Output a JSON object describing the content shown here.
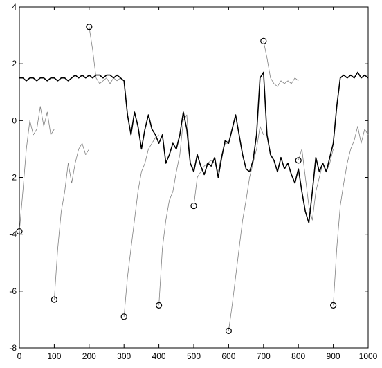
{
  "chart_data": {
    "type": "line",
    "xlim": [
      0,
      1000
    ],
    "ylim": [
      -8,
      4
    ],
    "xticks": [
      0,
      100,
      200,
      300,
      400,
      500,
      600,
      700,
      800,
      900,
      1000
    ],
    "yticks": [
      -8,
      -6,
      -4,
      -2,
      0,
      2,
      4
    ],
    "series": [
      {
        "color": "#000000",
        "width": 1.6,
        "x": [
          0,
          10,
          20,
          30,
          40,
          50,
          60,
          70,
          80,
          90,
          100,
          110,
          120,
          130,
          140,
          150,
          160,
          170,
          180,
          190,
          200,
          210,
          220,
          230,
          240,
          250,
          260,
          270,
          280,
          290,
          300,
          310,
          320,
          330,
          340,
          350,
          360,
          370,
          380,
          390,
          400,
          410,
          420,
          430,
          440,
          450,
          460,
          470,
          480,
          490,
          500,
          510,
          520,
          530,
          540,
          550,
          560,
          570,
          580,
          590,
          600,
          610,
          620,
          630,
          640,
          650,
          660,
          670,
          680,
          690,
          700,
          710,
          720,
          730,
          740,
          750,
          760,
          770,
          780,
          790,
          800,
          810,
          820,
          830,
          840,
          850,
          860,
          870,
          880,
          890,
          900,
          910,
          920,
          930,
          940,
          950,
          960,
          970,
          980,
          990,
          1000
        ],
        "values": [
          1.5,
          1.5,
          1.4,
          1.5,
          1.5,
          1.4,
          1.5,
          1.5,
          1.4,
          1.5,
          1.5,
          1.4,
          1.5,
          1.5,
          1.4,
          1.5,
          1.6,
          1.5,
          1.6,
          1.5,
          1.6,
          1.5,
          1.6,
          1.6,
          1.5,
          1.6,
          1.6,
          1.5,
          1.6,
          1.5,
          1.4,
          0.2,
          -0.5,
          0.3,
          -0.2,
          -1.0,
          -0.3,
          0.2,
          -0.3,
          -0.5,
          -0.8,
          -0.5,
          -1.5,
          -1.2,
          -0.8,
          -1.0,
          -0.5,
          0.3,
          -0.3,
          -1.5,
          -1.8,
          -1.2,
          -1.6,
          -1.9,
          -1.5,
          -1.6,
          -1.3,
          -2.0,
          -1.3,
          -0.7,
          -0.8,
          -0.3,
          0.2,
          -0.5,
          -1.2,
          -1.7,
          -1.8,
          -1.4,
          -0.5,
          1.5,
          1.7,
          -0.5,
          -1.2,
          -1.4,
          -1.8,
          -1.3,
          -1.7,
          -1.5,
          -1.9,
          -2.2,
          -1.7,
          -2.5,
          -3.2,
          -3.6,
          -2.5,
          -1.3,
          -1.8,
          -1.5,
          -1.8,
          -1.3,
          -0.8,
          0.5,
          1.5,
          1.6,
          1.5,
          1.6,
          1.5,
          1.7,
          1.5,
          1.6,
          1.5
        ]
      },
      {
        "color": "#808080",
        "width": 0.8,
        "x": [
          0,
          10,
          20,
          30,
          40,
          50,
          60,
          70,
          80,
          90,
          100
        ],
        "values": [
          -3.9,
          -2.5,
          -1.0,
          0.0,
          -0.5,
          -0.3,
          0.5,
          -0.2,
          0.3,
          -0.5,
          -0.3
        ]
      },
      {
        "color": "#808080",
        "width": 0.8,
        "x": [
          100,
          110,
          120,
          130,
          140,
          150,
          160,
          170,
          180,
          190,
          200
        ],
        "values": [
          -6.3,
          -4.5,
          -3.2,
          -2.5,
          -1.5,
          -2.2,
          -1.5,
          -1.0,
          -0.8,
          -1.2,
          -1.0
        ]
      },
      {
        "color": "#808080",
        "width": 0.8,
        "x": [
          200,
          210,
          220,
          230,
          240,
          250,
          260,
          270,
          280,
          290,
          300
        ],
        "values": [
          3.3,
          2.5,
          1.5,
          1.3,
          1.4,
          1.5,
          1.3,
          1.5,
          1.4,
          1.5,
          1.4
        ]
      },
      {
        "color": "#808080",
        "width": 0.8,
        "x": [
          300,
          310,
          320,
          330,
          340,
          350,
          360,
          370,
          380,
          390,
          400
        ],
        "values": [
          -6.9,
          -5.5,
          -4.5,
          -3.5,
          -2.5,
          -1.8,
          -1.5,
          -1.0,
          -0.8,
          -0.6,
          -0.5
        ]
      },
      {
        "color": "#808080",
        "width": 0.8,
        "x": [
          400,
          410,
          420,
          430,
          440,
          450,
          460,
          470,
          480,
          490,
          500
        ],
        "values": [
          -6.5,
          -4.5,
          -3.5,
          -2.8,
          -2.5,
          -1.8,
          -1.2,
          0.0,
          0.2,
          -1.5,
          -1.7
        ]
      },
      {
        "color": "#808080",
        "width": 0.8,
        "x": [
          500,
          510,
          520,
          530,
          540,
          550,
          560,
          570,
          580,
          590,
          600
        ],
        "values": [
          -3.0,
          -2.0,
          -1.8,
          -1.6,
          -1.5,
          -1.4,
          -1.5,
          -1.8,
          -1.2,
          -0.8,
          -0.8
        ]
      },
      {
        "color": "#808080",
        "width": 0.8,
        "x": [
          600,
          610,
          620,
          630,
          640,
          650,
          660,
          670,
          680,
          690,
          700
        ],
        "values": [
          -7.4,
          -6.5,
          -5.5,
          -4.5,
          -3.5,
          -2.8,
          -2.0,
          -1.5,
          -1.0,
          -0.2,
          -0.5
        ]
      },
      {
        "color": "#808080",
        "width": 0.8,
        "x": [
          700,
          710,
          720,
          730,
          740,
          750,
          760,
          770,
          780,
          790,
          800
        ],
        "values": [
          2.8,
          2.2,
          1.5,
          1.3,
          1.2,
          1.4,
          1.3,
          1.4,
          1.3,
          1.5,
          1.4
        ]
      },
      {
        "color": "#808080",
        "width": 0.8,
        "x": [
          800,
          810,
          820,
          830,
          840,
          850,
          860,
          870,
          880,
          890,
          900
        ],
        "values": [
          -1.4,
          -1.0,
          -2.0,
          -3.0,
          -3.5,
          -2.5,
          -2.0,
          -1.5,
          -1.8,
          -1.5,
          -1.0
        ]
      },
      {
        "color": "#808080",
        "width": 0.8,
        "x": [
          900,
          910,
          920,
          930,
          940,
          950,
          960,
          970,
          980,
          990,
          1000
        ],
        "values": [
          -6.5,
          -4.5,
          -3.0,
          -2.2,
          -1.5,
          -1.0,
          -0.7,
          -0.2,
          -0.8,
          -0.3,
          -0.5
        ]
      }
    ],
    "markers": {
      "color": "#000000",
      "x": [
        0,
        100,
        200,
        300,
        400,
        500,
        600,
        700,
        800,
        900
      ],
      "values": [
        -3.9,
        -6.3,
        3.3,
        -6.9,
        -6.5,
        -3.0,
        -7.4,
        2.8,
        -1.4,
        -6.5
      ]
    }
  }
}
